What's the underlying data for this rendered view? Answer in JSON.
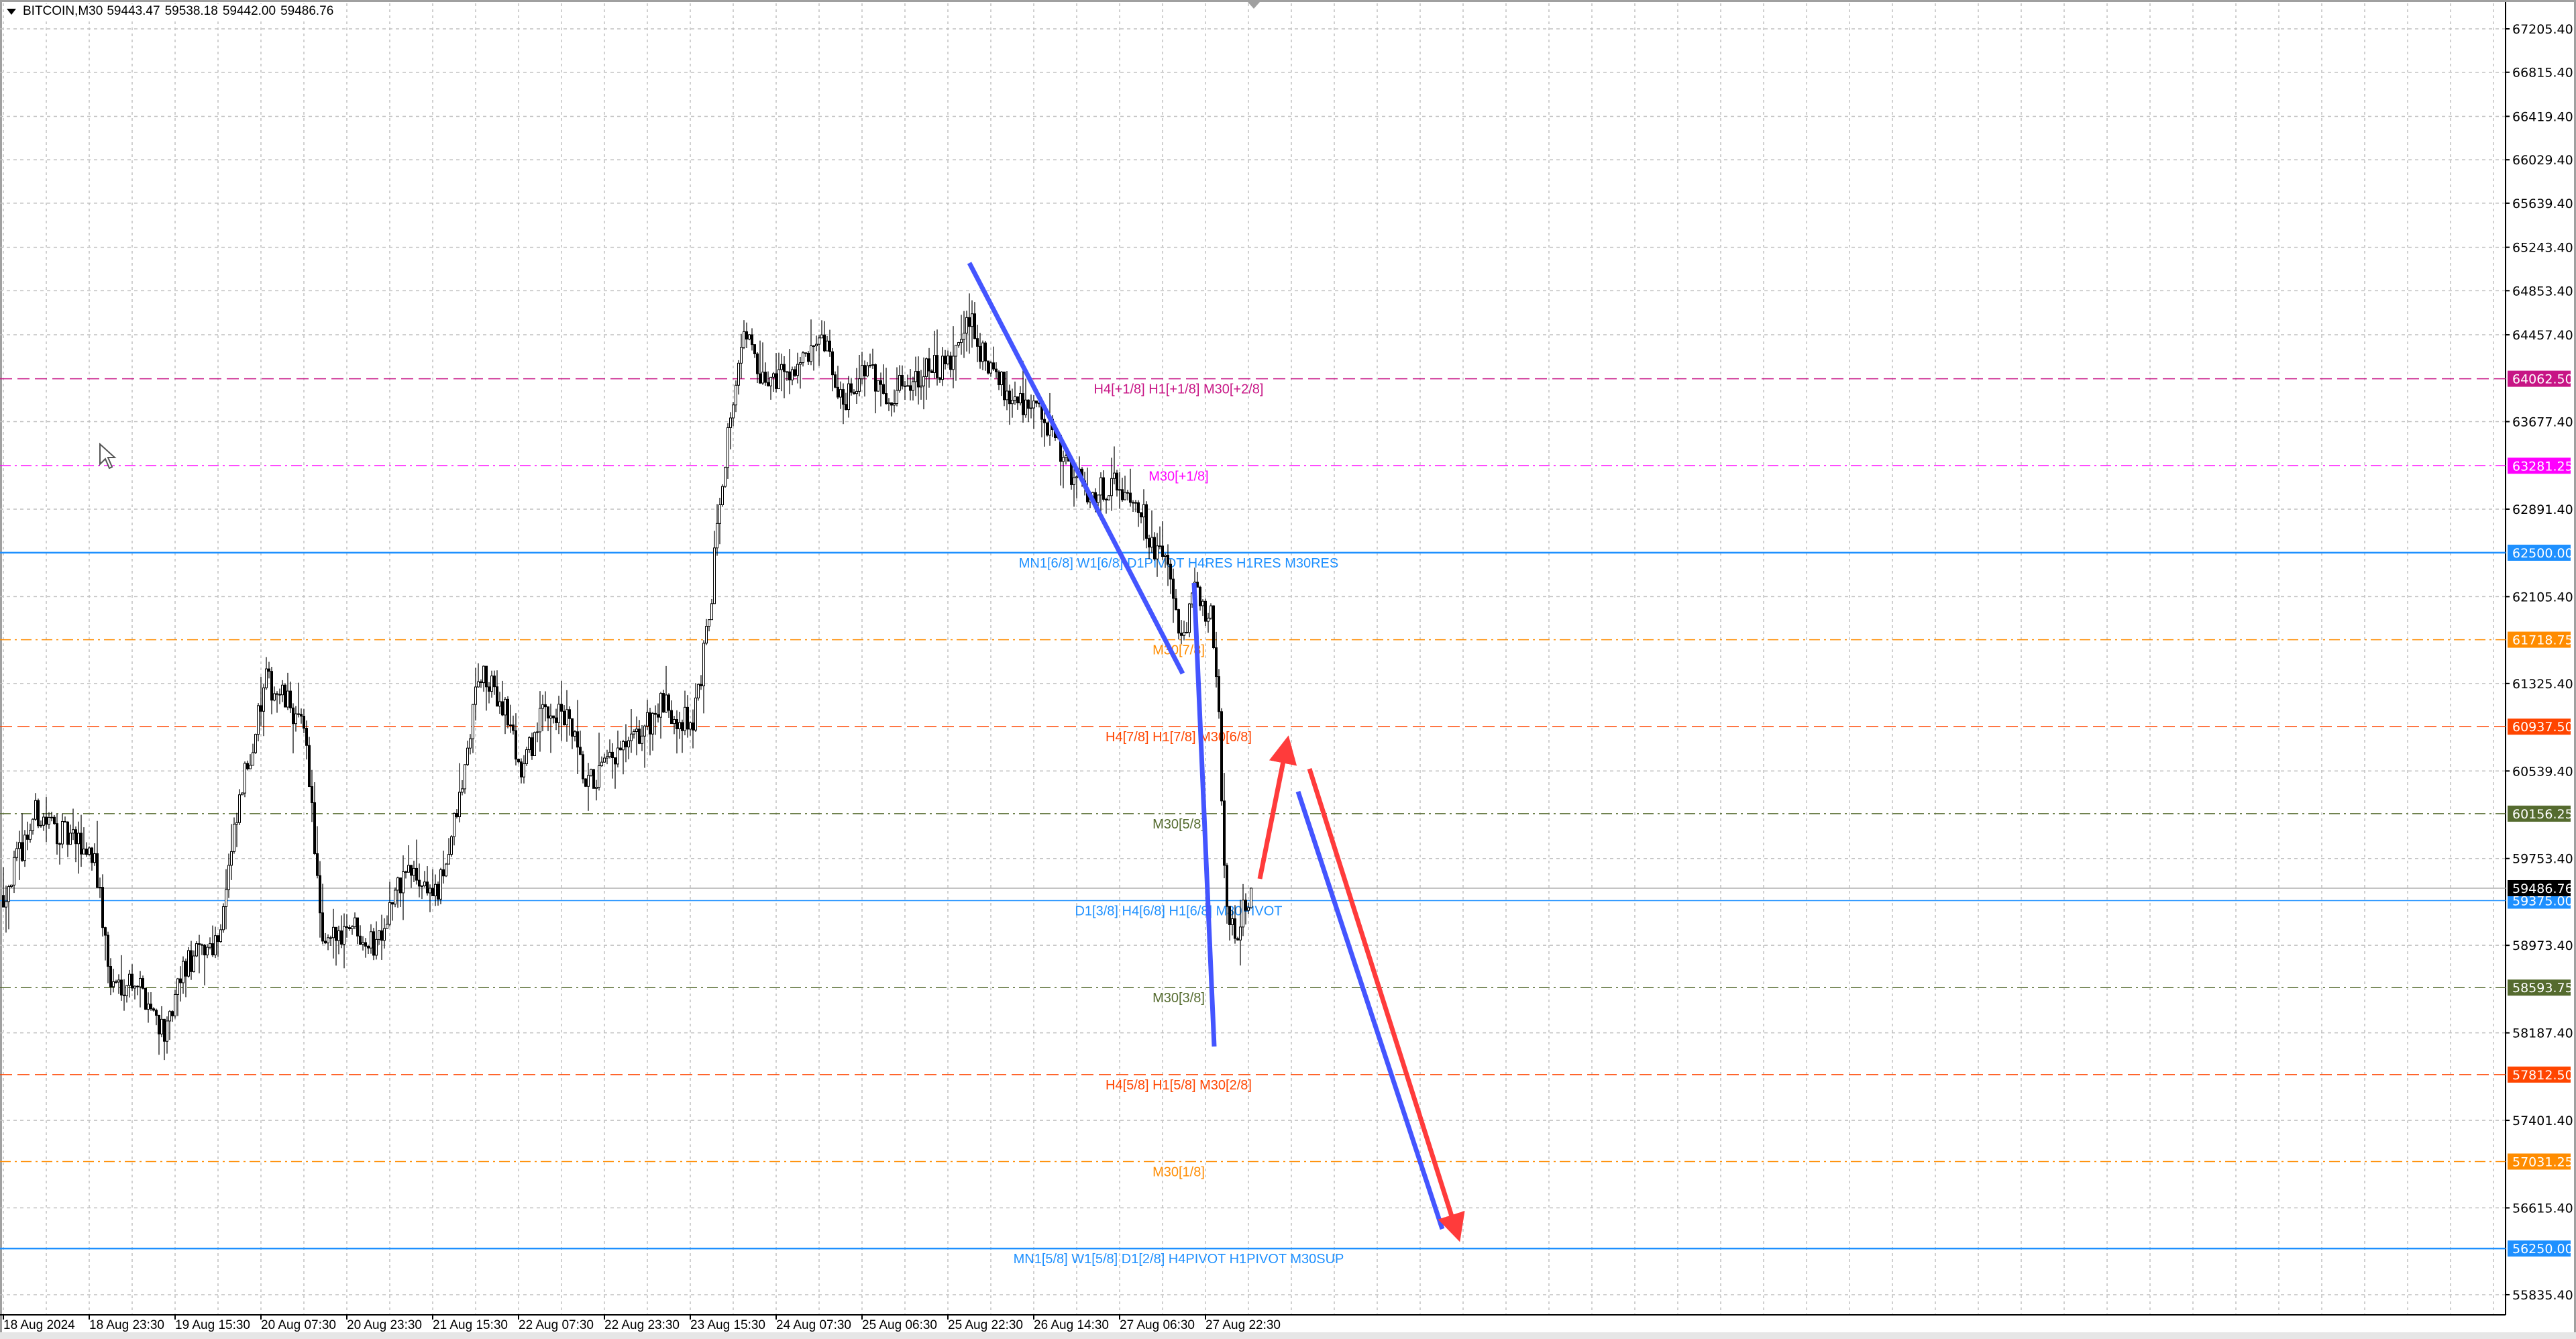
{
  "header": {
    "symbol": "BITCOIN,M30",
    "open": "59443.47",
    "high": "59538.18",
    "low": "59442.00",
    "close": "59486.76"
  },
  "colors": {
    "background": "#ffffff",
    "grid": "#c0c0c0",
    "candle_up_fill": "#ffffff",
    "candle_down_fill": "#000000",
    "trend_blue": "#4455ff",
    "trend_red": "#ff3b3b",
    "current_price_tag": "#000000"
  },
  "chart_data": {
    "type": "candlestick",
    "symbol": "BITCOIN",
    "timeframe": "M30",
    "last_price": 59486.76,
    "y_ticks": [
      "67205.40",
      "66815.40",
      "66419.40",
      "66029.40",
      "65639.40",
      "65243.40",
      "64853.40",
      "64457.40",
      "63677.40",
      "62891.40",
      "62105.40",
      "61325.40",
      "60539.40",
      "59753.40",
      "58973.40",
      "58187.40",
      "57401.40",
      "56615.40",
      "55835.40"
    ],
    "ylim": [
      55700,
      67300
    ],
    "x_ticks": [
      "18 Aug 2024",
      "18 Aug 23:30",
      "19 Aug 15:30",
      "20 Aug 07:30",
      "20 Aug 23:30",
      "21 Aug 15:30",
      "22 Aug 07:30",
      "22 Aug 23:30",
      "23 Aug 15:30",
      "24 Aug 07:30",
      "25 Aug 06:30",
      "25 Aug 22:30",
      "26 Aug 14:30",
      "27 Aug 06:30",
      "27 Aug 22:30"
    ],
    "grid": true,
    "approx_close_path": [
      [
        0,
        59422
      ],
      [
        12,
        60159
      ],
      [
        24,
        59938
      ],
      [
        34,
        59791
      ],
      [
        40,
        58610
      ],
      [
        49,
        58684
      ],
      [
        61,
        58168
      ],
      [
        67,
        58758
      ],
      [
        80,
        59053
      ],
      [
        89,
        60381
      ],
      [
        98,
        61340
      ],
      [
        107,
        61119
      ],
      [
        113,
        60824
      ],
      [
        119,
        58905
      ],
      [
        129,
        59201
      ],
      [
        138,
        58979
      ],
      [
        150,
        59643
      ],
      [
        162,
        59422
      ],
      [
        171,
        60381
      ],
      [
        177,
        61414
      ],
      [
        187,
        61119
      ],
      [
        193,
        60528
      ],
      [
        202,
        61119
      ],
      [
        211,
        60971
      ],
      [
        217,
        60381
      ],
      [
        226,
        60603
      ],
      [
        236,
        60824
      ],
      [
        245,
        61119
      ],
      [
        257,
        60971
      ],
      [
        263,
        61857
      ],
      [
        267,
        63037
      ],
      [
        272,
        63921
      ],
      [
        277,
        64513
      ],
      [
        282,
        63997
      ],
      [
        291,
        64144
      ],
      [
        300,
        64218
      ],
      [
        306,
        64366
      ],
      [
        312,
        63849
      ],
      [
        321,
        64144
      ],
      [
        330,
        63921
      ],
      [
        343,
        64144
      ],
      [
        352,
        64144
      ],
      [
        360,
        64587
      ],
      [
        367,
        64144
      ],
      [
        376,
        63921
      ],
      [
        386,
        63775
      ],
      [
        395,
        63332
      ],
      [
        404,
        63037
      ],
      [
        413,
        63111
      ],
      [
        422,
        63037
      ],
      [
        428,
        62594
      ],
      [
        435,
        62300
      ],
      [
        439,
        61635
      ],
      [
        444,
        62152
      ],
      [
        450,
        61931
      ],
      [
        453,
        60971
      ],
      [
        456,
        59201
      ],
      [
        459,
        59053
      ],
      [
        465,
        59486.76
      ]
    ],
    "levels": [
      {
        "price": 64062.5,
        "tag": "64062.50",
        "label": "H4[+1/8] H1[+1/8] M30[+2/8]",
        "color": "#c71585",
        "style": "dash"
      },
      {
        "price": 63281.25,
        "tag": "63281.25",
        "label": "M30[+1/8]",
        "color": "#ff00ff",
        "style": "dashdot"
      },
      {
        "price": 62500.0,
        "tag": "62500.00",
        "label": "MN1[6/8] W1[6/8] D1PIVOT H4RES H1RES M30RES",
        "color": "#1e90ff",
        "style": "solid"
      },
      {
        "price": 61718.75,
        "tag": "61718.75",
        "label": "M30[7/8]",
        "color": "#ff8c00",
        "style": "dashdot"
      },
      {
        "price": 60937.5,
        "tag": "60937.50",
        "label": "H4[7/8] H1[7/8] M30[6/8]",
        "color": "#ff4500",
        "style": "dash"
      },
      {
        "price": 60156.25,
        "tag": "60156.25",
        "label": "M30[5/8]",
        "color": "#556b2f",
        "style": "dashdot"
      },
      {
        "price": 59375.0,
        "tag": "59375.00",
        "label": "D1[3/8] H4[6/8] H1[6/8] M30PIVOT",
        "color": "#1e90ff",
        "style": "thin"
      },
      {
        "price": 58593.75,
        "tag": "58593.75",
        "label": "M30[3/8]",
        "color": "#556b2f",
        "style": "dashdot"
      },
      {
        "price": 57812.5,
        "tag": "57812.50",
        "label": "H4[5/8] H1[5/8] M30[2/8]",
        "color": "#ff4500",
        "style": "dash"
      },
      {
        "price": 57031.25,
        "tag": "57031.25",
        "label": "M30[1/8]",
        "color": "#ff8c00",
        "style": "dashdot"
      },
      {
        "price": 56250.0,
        "tag": "56250.00",
        "label": "MN1[5/8] W1[5/8] D1[2/8] H4PIVOT H1PIVOT M30SUP",
        "color": "#1e90ff",
        "style": "solid"
      }
    ],
    "current_price_tag": "59486.76"
  }
}
